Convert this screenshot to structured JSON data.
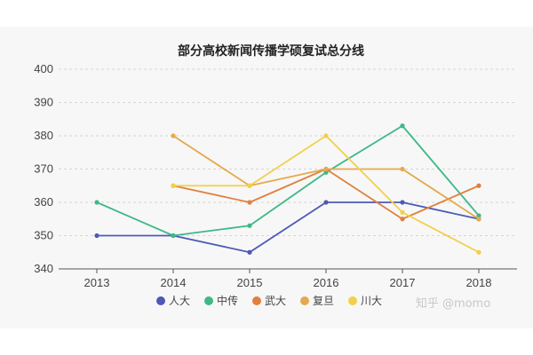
{
  "chart_data": {
    "type": "line",
    "title": "部分高校新闻传播学硕复试总分线",
    "xlabel": "",
    "ylabel": "",
    "x": [
      "2013",
      "2014",
      "2015",
      "2016",
      "2017",
      "2018"
    ],
    "yticks": [
      "340",
      "350",
      "360",
      "370",
      "380",
      "390",
      "400"
    ],
    "ylim": [
      340,
      400
    ],
    "grid": "horizontal-dashed",
    "legend_placement": "bottom",
    "series": [
      {
        "name": "人大",
        "color": "#4e59b5",
        "values": [
          350,
          350,
          345,
          360,
          360,
          355
        ]
      },
      {
        "name": "中传",
        "color": "#3fb888",
        "values": [
          360,
          350,
          353,
          369,
          383,
          356
        ]
      },
      {
        "name": "武大",
        "color": "#e0803e",
        "values": [
          null,
          365,
          360,
          370,
          355,
          365
        ]
      },
      {
        "name": "复旦",
        "color": "#e5a94d",
        "values": [
          null,
          380,
          365,
          370,
          370,
          355
        ]
      },
      {
        "name": "川大",
        "color": "#f2d04a",
        "values": [
          null,
          365,
          365,
          380,
          357,
          345
        ]
      }
    ]
  },
  "watermark": "知乎 @momo"
}
